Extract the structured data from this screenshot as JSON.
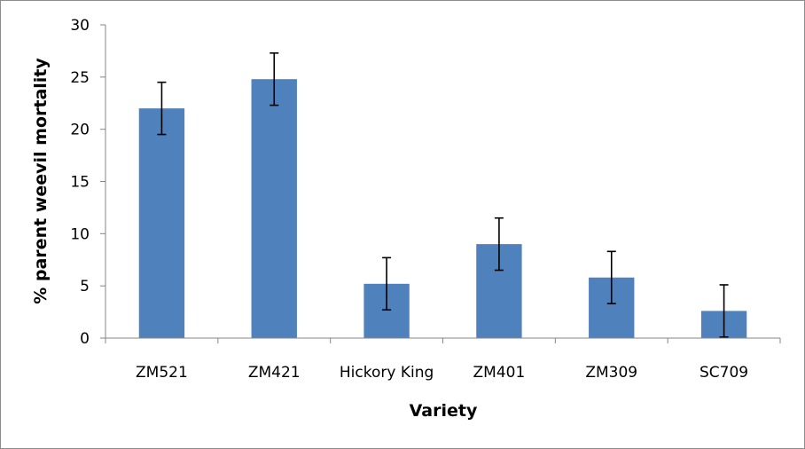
{
  "chart_data": {
    "type": "bar",
    "title": "",
    "xlabel": "Variety",
    "ylabel": "% parent weevil mortality",
    "ylim": [
      0,
      30
    ],
    "yticks": [
      0,
      5,
      10,
      15,
      20,
      25,
      30
    ],
    "grid": false,
    "legend": "none",
    "bar_color": "#4f81bd",
    "categories": [
      "ZM521",
      "ZM421",
      "Hickory King",
      "ZM401",
      "ZM309",
      "SC709"
    ],
    "values": [
      22.0,
      24.8,
      5.2,
      9.0,
      5.8,
      2.6
    ],
    "error_bars": [
      2.5,
      2.5,
      2.5,
      2.5,
      2.5,
      2.5
    ]
  }
}
